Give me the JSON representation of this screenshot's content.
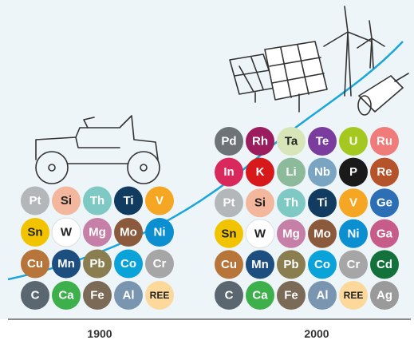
{
  "eras": [
    {
      "year": "1900",
      "rows": [
        [
          {
            "symbol": "Pt",
            "color": "#b4b7ba"
          },
          {
            "symbol": "Si",
            "color": "#f3b79d"
          },
          {
            "symbol": "Th",
            "color": "#7fc9c4"
          },
          {
            "symbol": "Ti",
            "color": "#123b60"
          },
          {
            "symbol": "V",
            "color": "#f5a623"
          }
        ],
        [
          {
            "symbol": "Sn",
            "color": "#f2c400"
          },
          {
            "symbol": "W",
            "color": "#ffffff"
          },
          {
            "symbol": "Mg",
            "color": "#c680a8"
          },
          {
            "symbol": "Mo",
            "color": "#8b5a3c"
          },
          {
            "symbol": "Ni",
            "color": "#0b8fd1"
          }
        ],
        [
          {
            "symbol": "Cu",
            "color": "#b8753a"
          },
          {
            "symbol": "Mn",
            "color": "#1c4e80"
          },
          {
            "symbol": "Pb",
            "color": "#8a7d4f"
          },
          {
            "symbol": "Co",
            "color": "#0aa3d9"
          },
          {
            "symbol": "Cr",
            "color": "#a6a6a6"
          }
        ],
        [
          {
            "symbol": "C",
            "color": "#5b6770"
          },
          {
            "symbol": "Ca",
            "color": "#3db04b"
          },
          {
            "symbol": "Fe",
            "color": "#7a6a56"
          },
          {
            "symbol": "Al",
            "color": "#7a95b0"
          },
          {
            "symbol": "REE",
            "color": "#fcd99a"
          }
        ]
      ]
    },
    {
      "year": "2000",
      "rows": [
        [
          {
            "symbol": "Pd",
            "color": "#6e7378"
          },
          {
            "symbol": "Rh",
            "color": "#9c1d5e"
          },
          {
            "symbol": "Ta",
            "color": "#d7e5b9"
          },
          {
            "symbol": "Te",
            "color": "#7a3d9e"
          },
          {
            "symbol": "U",
            "color": "#a5c820"
          },
          {
            "symbol": "Ru",
            "color": "#ef7b7b"
          }
        ],
        [
          {
            "symbol": "In",
            "color": "#d9285c"
          },
          {
            "symbol": "K",
            "color": "#d7191c"
          },
          {
            "symbol": "Li",
            "color": "#8cba9a"
          },
          {
            "symbol": "Nb",
            "color": "#7aa5c2"
          },
          {
            "symbol": "P",
            "color": "#1a1a1a"
          },
          {
            "symbol": "Re",
            "color": "#b5532a"
          }
        ],
        [
          {
            "symbol": "Pt",
            "color": "#b4b7ba"
          },
          {
            "symbol": "Si",
            "color": "#f3b79d"
          },
          {
            "symbol": "Th",
            "color": "#7fc9c4"
          },
          {
            "symbol": "Ti",
            "color": "#123b60"
          },
          {
            "symbol": "V",
            "color": "#f5a623"
          },
          {
            "symbol": "Ge",
            "color": "#2d6fb5"
          }
        ],
        [
          {
            "symbol": "Sn",
            "color": "#f2c400"
          },
          {
            "symbol": "W",
            "color": "#ffffff"
          },
          {
            "symbol": "Mg",
            "color": "#c680a8"
          },
          {
            "symbol": "Mo",
            "color": "#8b5a3c"
          },
          {
            "symbol": "Ni",
            "color": "#0b8fd1"
          },
          {
            "symbol": "Ga",
            "color": "#c75c8a"
          }
        ],
        [
          {
            "symbol": "Cu",
            "color": "#b8753a"
          },
          {
            "symbol": "Mn",
            "color": "#1c4e80"
          },
          {
            "symbol": "Pb",
            "color": "#8a7d4f"
          },
          {
            "symbol": "Co",
            "color": "#0aa3d9"
          },
          {
            "symbol": "Cr",
            "color": "#a6a6a6"
          },
          {
            "symbol": "Cd",
            "color": "#13723c"
          }
        ],
        [
          {
            "symbol": "C",
            "color": "#5b6770"
          },
          {
            "symbol": "Ca",
            "color": "#3db04b"
          },
          {
            "symbol": "Fe",
            "color": "#7a6a56"
          },
          {
            "symbol": "Al",
            "color": "#7a95b0"
          },
          {
            "symbol": "REE",
            "color": "#fcd99a"
          },
          {
            "symbol": "Ag",
            "color": "#9a9a9a"
          }
        ]
      ]
    }
  ]
}
